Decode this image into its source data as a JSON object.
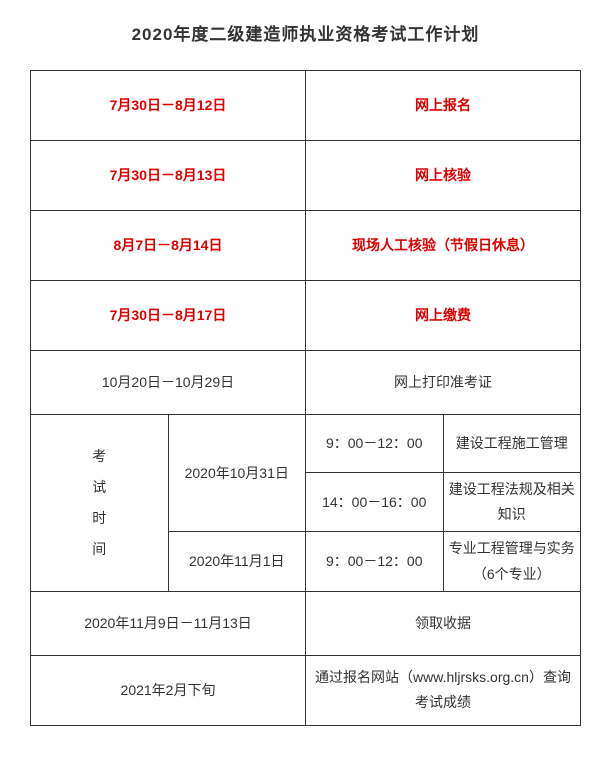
{
  "title": "2020年度二级建造师执业资格考试工作计划",
  "rows": {
    "r1": {
      "date": "7月30日－8月12日",
      "desc": "网上报名"
    },
    "r2": {
      "date": "7月30日－8月13日",
      "desc": "网上核验"
    },
    "r3": {
      "date": "8月7日－8月14日",
      "desc": "现场人工核验（节假日休息）"
    },
    "r4": {
      "date": "7月30日－8月17日",
      "desc": "网上缴费"
    },
    "r5": {
      "date": "10月20日－10月29日",
      "desc": "网上打印准考证"
    }
  },
  "exam": {
    "label": "考试时间",
    "d1": "2020年10月31日",
    "d2": "2020年11月1日",
    "t1": "9：00－12：00",
    "t2": "14：00－16：00",
    "t3": "9：00－12：00",
    "s1": "建设工程施工管理",
    "s2": "建设工程法规及相关知识",
    "s3": "专业工程管理与实务　　（6个专业）"
  },
  "r7": {
    "date": "2020年11月9日－11月13日",
    "desc": "领取收据"
  },
  "r8": {
    "date": "2021年2月下旬",
    "desc": "通过报名网站（www.hljrsks.org.cn）查询考试成绩"
  },
  "colors": {
    "red": "#d00",
    "text": "#333",
    "border": "#333",
    "bg": "#ffffff"
  }
}
